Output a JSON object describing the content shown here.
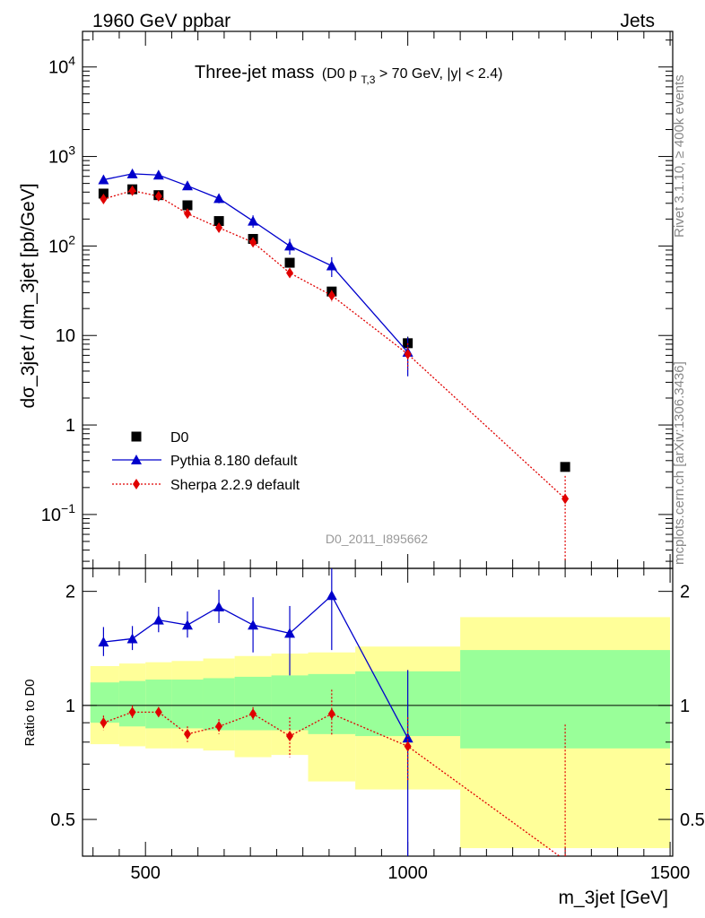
{
  "header": {
    "left": "1960 GeV ppbar",
    "right": "Jets"
  },
  "side_labels": {
    "rivet": "Rivet 3.1.10, ≥ 400k events",
    "mcplots": "mcplots.cern.ch [arXiv:1306.3436]"
  },
  "title": {
    "main": "Three-jet mass",
    "cond_prefix": "(D0 p",
    "cond_sub": "T,3",
    "cond_suffix": " > 70 GeV, |y| < 2.4)"
  },
  "analysis_id": "D0_2011_I895662",
  "chart_data": [
    {
      "type": "scatter",
      "panel": "main",
      "xlabel": "m_3jet [GeV]",
      "ylabel": "dσ_3jet / dm_3jet [pb/GeV]",
      "xlim": [
        380,
        1505
      ],
      "ylim": [
        0.025,
        25000
      ],
      "log_y": true,
      "y_ticks": [
        {
          "v": 10000,
          "base": "10",
          "exp": "4"
        },
        {
          "v": 1000,
          "base": "10",
          "exp": "3"
        },
        {
          "v": 100,
          "base": "10",
          "exp": "2"
        },
        {
          "v": 10,
          "base": "10",
          "exp": ""
        },
        {
          "v": 1,
          "base": "1",
          "exp": ""
        },
        {
          "v": 0.1,
          "base": "10",
          "exp": "−1"
        }
      ],
      "legend_position": "bottom-left",
      "series": [
        {
          "name": "D0",
          "marker": "square",
          "color": "#000000",
          "x": [
            420,
            475,
            525,
            580,
            640,
            705,
            775,
            855,
            1000,
            1300
          ],
          "y": [
            385,
            430,
            370,
            285,
            190,
            120,
            65,
            31,
            8.2,
            0.34
          ],
          "yerr": [
            0,
            0,
            0,
            0,
            0,
            0,
            0,
            0,
            1.5,
            0
          ]
        },
        {
          "name": "Pythia 8.180 default",
          "marker": "triangle",
          "line": "solid",
          "color": "#0000cc",
          "x": [
            420,
            475,
            525,
            580,
            640,
            705,
            775,
            855,
            1000
          ],
          "y": [
            550,
            640,
            620,
            470,
            340,
            190,
            100,
            60,
            6.5
          ],
          "yerr": [
            60,
            50,
            50,
            40,
            40,
            30,
            20,
            15,
            3.0
          ]
        },
        {
          "name": "Sherpa 2.2.9 default",
          "marker": "diamond",
          "line": "dotted",
          "color": "#e00000",
          "x": [
            420,
            475,
            525,
            580,
            640,
            705,
            775,
            855,
            1000,
            1300
          ],
          "y": [
            335,
            415,
            360,
            230,
            160,
            110,
            50,
            28,
            6.2,
            0.15
          ],
          "yerr": [
            30,
            30,
            30,
            20,
            15,
            10,
            6,
            4,
            2.0,
            0.12
          ]
        }
      ]
    },
    {
      "type": "scatter",
      "panel": "ratio",
      "xlabel": "m_3jet [GeV]",
      "ylabel": "Ratio to D0",
      "xlim": [
        380,
        1505
      ],
      "ylim": [
        0.4,
        2.3
      ],
      "log_y": true,
      "y_ticks": [
        0.5,
        1,
        2
      ],
      "x_ticks": [
        500,
        1000,
        1500
      ],
      "reference_line": 1,
      "bands": {
        "edges": [
          395,
          450,
          500,
          550,
          610,
          670,
          740,
          810,
          900,
          1100,
          1500
        ],
        "total_low": [
          0.79,
          0.78,
          0.77,
          0.77,
          0.76,
          0.73,
          0.74,
          0.63,
          0.6,
          0.42
        ],
        "total_high": [
          1.27,
          1.29,
          1.3,
          1.31,
          1.33,
          1.35,
          1.37,
          1.38,
          1.43,
          1.71
        ],
        "stat_low": [
          0.9,
          0.88,
          0.87,
          0.87,
          0.86,
          0.86,
          0.86,
          0.84,
          0.83,
          0.77
        ],
        "stat_high": [
          1.15,
          1.16,
          1.17,
          1.17,
          1.18,
          1.19,
          1.2,
          1.21,
          1.23,
          1.4
        ],
        "total_color": "#ffff99",
        "stat_color": "#99ff99"
      },
      "series": [
        {
          "name": "Pythia 8.180 default",
          "color": "#0000cc",
          "x": [
            420,
            475,
            525,
            580,
            640,
            705,
            775,
            855,
            1000
          ],
          "y": [
            1.47,
            1.5,
            1.68,
            1.63,
            1.82,
            1.63,
            1.55,
            1.95,
            0.82
          ],
          "yerr_low": [
            0.12,
            0.1,
            0.12,
            0.12,
            0.17,
            0.25,
            0.35,
            0.55,
            0.45
          ],
          "yerr_high": [
            0.14,
            0.12,
            0.14,
            0.14,
            0.2,
            0.3,
            0.28,
            0.4,
            0.42
          ]
        },
        {
          "name": "Sherpa 2.2.9 default",
          "color": "#e00000",
          "x": [
            420,
            475,
            525,
            580,
            640,
            705,
            775,
            855,
            1000,
            1300
          ],
          "y": [
            0.9,
            0.96,
            0.96,
            0.84,
            0.88,
            0.95,
            0.83,
            0.95,
            0.78,
            0.39
          ],
          "yerr_low": [
            0.04,
            0.04,
            0.03,
            0.04,
            0.04,
            0.04,
            0.1,
            0.12,
            0.15,
            0.05
          ],
          "yerr_high": [
            0.04,
            0.04,
            0.03,
            0.04,
            0.04,
            0.04,
            0.1,
            0.15,
            0.15,
            0.5
          ]
        }
      ]
    }
  ]
}
